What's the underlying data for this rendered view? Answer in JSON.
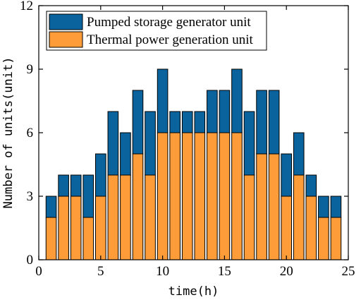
{
  "chart_data": {
    "type": "bar",
    "stacked": true,
    "x": [
      1,
      2,
      3,
      4,
      5,
      6,
      7,
      8,
      9,
      10,
      11,
      12,
      13,
      14,
      15,
      16,
      17,
      18,
      19,
      20,
      21,
      22,
      23,
      24
    ],
    "series": [
      {
        "name": "Thermal power generation unit",
        "color": "#fd9c38",
        "values": [
          2,
          3,
          3,
          2,
          3,
          4,
          4,
          5,
          4,
          6,
          6,
          6,
          6,
          6,
          6,
          6,
          4,
          5,
          5,
          3,
          4,
          3,
          2,
          2
        ]
      },
      {
        "name": "Pumped storage generator unit",
        "color": "#0a639c",
        "values": [
          1,
          1,
          1,
          2,
          2,
          3,
          2,
          3,
          3,
          3,
          1,
          1,
          1,
          2,
          2,
          3,
          3,
          3,
          3,
          2,
          2,
          1,
          1,
          1
        ]
      }
    ],
    "xlabel": "time(h)",
    "ylabel": "Number of units(unit)",
    "xlim": [
      0,
      25
    ],
    "ylim": [
      0,
      12
    ],
    "xticks": [
      0,
      5,
      10,
      15,
      20,
      25
    ],
    "yticks": [
      0,
      3,
      6,
      9,
      12
    ],
    "grid": false,
    "legend_position": "top-left"
  }
}
